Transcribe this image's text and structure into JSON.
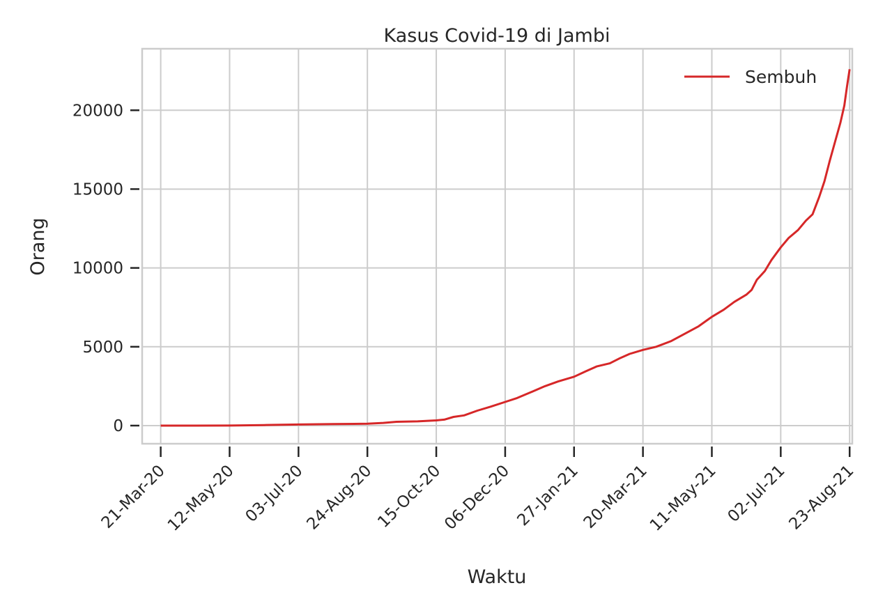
{
  "chart_data": {
    "type": "line",
    "title": "Kasus Covid-19 di Jambi",
    "xlabel": "Waktu",
    "ylabel": "Orang",
    "ylim": [
      -1150,
      23900
    ],
    "xlim": [
      "2020-03-07",
      "2021-08-25"
    ],
    "grid": true,
    "legend_position": "top-right",
    "x_ticks": [
      {
        "date": "2020-03-21",
        "label": "21-Mar-20"
      },
      {
        "date": "2020-05-12",
        "label": "12-May-20"
      },
      {
        "date": "2020-07-03",
        "label": "03-Jul-20"
      },
      {
        "date": "2020-08-24",
        "label": "24-Aug-20"
      },
      {
        "date": "2020-10-15",
        "label": "15-Oct-20"
      },
      {
        "date": "2020-12-06",
        "label": "06-Dec-20"
      },
      {
        "date": "2021-01-27",
        "label": "27-Jan-21"
      },
      {
        "date": "2021-03-20",
        "label": "20-Mar-21"
      },
      {
        "date": "2021-05-11",
        "label": "11-May-21"
      },
      {
        "date": "2021-07-02",
        "label": "02-Jul-21"
      },
      {
        "date": "2021-08-23",
        "label": "23-Aug-21"
      }
    ],
    "y_ticks": [
      {
        "value": 0,
        "label": "0"
      },
      {
        "value": 5000,
        "label": "5000"
      },
      {
        "value": 10000,
        "label": "10000"
      },
      {
        "value": 15000,
        "label": "15000"
      },
      {
        "value": 20000,
        "label": "20000"
      }
    ],
    "series": [
      {
        "name": "Sembuh",
        "color": "#d62728",
        "points": [
          [
            "2020-03-21",
            0
          ],
          [
            "2020-04-15",
            0
          ],
          [
            "2020-05-12",
            5
          ],
          [
            "2020-06-07",
            35
          ],
          [
            "2020-07-03",
            70
          ],
          [
            "2020-07-29",
            100
          ],
          [
            "2020-08-24",
            120
          ],
          [
            "2020-09-05",
            170
          ],
          [
            "2020-09-15",
            240
          ],
          [
            "2020-10-01",
            270
          ],
          [
            "2020-10-15",
            330
          ],
          [
            "2020-10-21",
            380
          ],
          [
            "2020-10-28",
            550
          ],
          [
            "2020-11-05",
            650
          ],
          [
            "2020-11-15",
            950
          ],
          [
            "2020-11-25",
            1200
          ],
          [
            "2020-12-06",
            1500
          ],
          [
            "2020-12-15",
            1750
          ],
          [
            "2020-12-25",
            2100
          ],
          [
            "2021-01-05",
            2500
          ],
          [
            "2021-01-15",
            2800
          ],
          [
            "2021-01-27",
            3100
          ],
          [
            "2021-02-05",
            3450
          ],
          [
            "2021-02-13",
            3750
          ],
          [
            "2021-02-23",
            3950
          ],
          [
            "2021-03-02",
            4250
          ],
          [
            "2021-03-10",
            4550
          ],
          [
            "2021-03-20",
            4800
          ],
          [
            "2021-03-30",
            5000
          ],
          [
            "2021-04-10",
            5350
          ],
          [
            "2021-04-20",
            5800
          ],
          [
            "2021-05-01",
            6300
          ],
          [
            "2021-05-11",
            6900
          ],
          [
            "2021-05-20",
            7350
          ],
          [
            "2021-05-28",
            7850
          ],
          [
            "2021-06-06",
            8300
          ],
          [
            "2021-06-10",
            8600
          ],
          [
            "2021-06-14",
            9250
          ],
          [
            "2021-06-20",
            9800
          ],
          [
            "2021-06-25",
            10500
          ],
          [
            "2021-07-02",
            11300
          ],
          [
            "2021-07-08",
            11900
          ],
          [
            "2021-07-15",
            12400
          ],
          [
            "2021-07-21",
            13000
          ],
          [
            "2021-07-26",
            13400
          ],
          [
            "2021-07-31",
            14500
          ],
          [
            "2021-08-04",
            15500
          ],
          [
            "2021-08-08",
            16800
          ],
          [
            "2021-08-12",
            18000
          ],
          [
            "2021-08-16",
            19200
          ],
          [
            "2021-08-19",
            20300
          ],
          [
            "2021-08-21",
            21500
          ],
          [
            "2021-08-23",
            22600
          ]
        ]
      }
    ]
  }
}
